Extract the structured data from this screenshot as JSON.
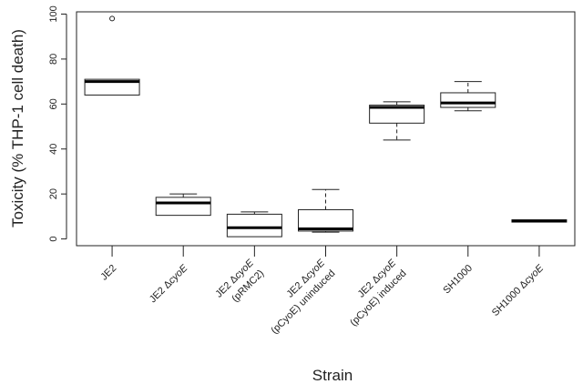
{
  "chart_data": {
    "type": "box",
    "xlabel": "Strain",
    "ylabel": "Toxicity (% THP-1 cell death)",
    "ylim": [
      -3,
      101
    ],
    "yticks": [
      0,
      20,
      40,
      60,
      80,
      100
    ],
    "categories": [
      {
        "lines": [
          "JE2"
        ],
        "italic": []
      },
      {
        "lines": [
          "JE2 ΔcyoE"
        ],
        "italic": [
          "cyoE"
        ]
      },
      {
        "lines": [
          "JE2 ΔcyoE",
          "(pRMC2)"
        ],
        "italic": [
          "cyoE"
        ]
      },
      {
        "lines": [
          "JE2 ΔcyoE",
          "(pCyoE) uninduced"
        ],
        "italic": [
          "cyoE"
        ]
      },
      {
        "lines": [
          "JE2 ΔcyoE",
          "(pCyoE) induced"
        ],
        "italic": [
          "cyoE"
        ]
      },
      {
        "lines": [
          "SH1000"
        ],
        "italic": []
      },
      {
        "lines": [
          "SH1000 ΔcyoE"
        ],
        "italic": [
          "cyoE"
        ]
      }
    ],
    "boxes": [
      {
        "min": 64,
        "q1": 64,
        "median": 70,
        "q3": 71,
        "max": 71,
        "outliers": [
          98
        ]
      },
      {
        "min": 10.5,
        "q1": 10.5,
        "median": 16,
        "q3": 18.5,
        "max": 20,
        "outliers": []
      },
      {
        "min": 1,
        "q1": 1,
        "median": 5,
        "q3": 11,
        "max": 12,
        "outliers": []
      },
      {
        "min": 3,
        "q1": 3.5,
        "median": 4.5,
        "q3": 13,
        "max": 22,
        "outliers": []
      },
      {
        "min": 44,
        "q1": 51.5,
        "median": 58.5,
        "q3": 59.5,
        "max": 61,
        "outliers": []
      },
      {
        "min": 57,
        "q1": 58.5,
        "median": 60.5,
        "q3": 65,
        "max": 70,
        "outliers": []
      },
      {
        "min": 7.5,
        "q1": 7.5,
        "median": 8,
        "q3": 8.5,
        "max": 8.5,
        "outliers": []
      }
    ]
  }
}
